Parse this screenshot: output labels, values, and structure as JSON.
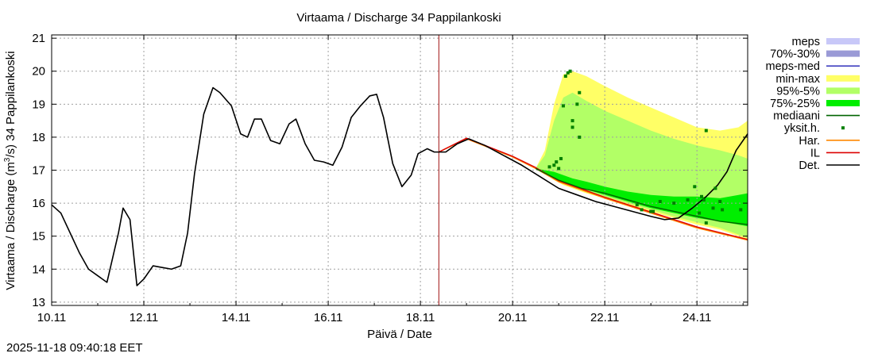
{
  "chart_data": {
    "type": "line",
    "title": "Virtaama / Discharge  34 Pappilankoski",
    "xlabel": "Päivä / Date",
    "ylabel_prefix": "Virtaama / Discharge (m",
    "ylabel_sup": "3",
    "ylabel_suffix": "/s)  34 Pappilankoski",
    "xlim": [
      10.0,
      25.1
    ],
    "ylim": [
      12.9,
      21.1
    ],
    "xticks": [
      {
        "value": 10,
        "label": "10.11"
      },
      {
        "value": 12,
        "label": "12.11"
      },
      {
        "value": 14,
        "label": "14.11"
      },
      {
        "value": 16,
        "label": "16.11"
      },
      {
        "value": 18,
        "label": "18.11"
      },
      {
        "value": 20,
        "label": "20.11"
      },
      {
        "value": 22,
        "label": "22.11"
      },
      {
        "value": 24,
        "label": "24.11"
      }
    ],
    "yticks": [
      13,
      14,
      15,
      16,
      17,
      18,
      19,
      20,
      21
    ],
    "now_x": 18.4,
    "grid": true,
    "legend_position": "right",
    "legend": [
      {
        "label": "meps",
        "kind": "box",
        "color": "#c8c8f8"
      },
      {
        "label": "70%-30%",
        "kind": "box",
        "color": "#9a9ad6"
      },
      {
        "label": "meps-med",
        "kind": "line",
        "color": "#4040c0"
      },
      {
        "label": "min-max",
        "kind": "box",
        "color": "#ffff66"
      },
      {
        "label": "95%-5%",
        "kind": "box",
        "color": "#b2ff66"
      },
      {
        "label": "75%-25%",
        "kind": "box",
        "color": "#00ee00"
      },
      {
        "label": "mediaani",
        "kind": "line",
        "color": "#006400"
      },
      {
        "label": "yksit.h.",
        "kind": "dot",
        "color": "#008000"
      },
      {
        "label": "Har.",
        "kind": "line",
        "color": "#ff8800"
      },
      {
        "label": "IL",
        "kind": "line",
        "color": "#dd0000"
      },
      {
        "label": "Det.",
        "kind": "line",
        "color": "#000000"
      }
    ],
    "bands": [
      {
        "name": "min-max",
        "color": "#ffff66",
        "x": [
          20.5,
          20.7,
          20.9,
          21.1,
          21.3,
          21.6,
          22.0,
          22.5,
          23.0,
          23.5,
          24.0,
          24.5,
          24.9,
          25.1
        ],
        "upper": [
          17.05,
          17.6,
          19.0,
          19.9,
          20.0,
          19.85,
          19.55,
          19.2,
          18.9,
          18.6,
          18.3,
          18.2,
          18.3,
          18.5
        ],
        "lower": [
          17.05,
          16.9,
          16.7,
          16.55,
          16.45,
          16.3,
          16.15,
          15.95,
          15.75,
          15.55,
          15.35,
          15.2,
          15.0,
          14.9
        ]
      },
      {
        "name": "95%-5%",
        "color": "#b2ff66",
        "x": [
          20.5,
          20.7,
          20.9,
          21.1,
          21.3,
          21.6,
          22.0,
          22.5,
          23.0,
          23.5,
          24.0,
          24.5,
          24.9,
          25.1
        ],
        "upper": [
          17.05,
          17.45,
          18.5,
          19.2,
          19.35,
          19.1,
          18.8,
          18.5,
          18.2,
          17.95,
          17.75,
          17.6,
          17.45,
          17.35
        ],
        "lower": [
          17.05,
          16.9,
          16.72,
          16.6,
          16.5,
          16.35,
          16.2,
          16.0,
          15.8,
          15.6,
          15.42,
          15.25,
          15.05,
          14.95
        ]
      },
      {
        "name": "75%-25%",
        "color": "#00ee00",
        "x": [
          20.5,
          20.7,
          20.9,
          21.1,
          21.3,
          21.6,
          22.0,
          22.5,
          23.0,
          23.5,
          24.0,
          24.5,
          24.9,
          25.1
        ],
        "upper": [
          17.05,
          17.0,
          16.95,
          16.85,
          16.75,
          16.65,
          16.5,
          16.35,
          16.25,
          16.2,
          16.2,
          16.15,
          16.25,
          16.3
        ],
        "lower": [
          17.05,
          16.92,
          16.78,
          16.65,
          16.55,
          16.42,
          16.25,
          16.05,
          15.85,
          15.7,
          15.55,
          15.45,
          15.35,
          15.3
        ]
      }
    ],
    "series": [
      {
        "name": "Det.",
        "color": "#000000",
        "x": [
          10.0,
          10.2,
          10.4,
          10.6,
          10.8,
          11.0,
          11.2,
          11.35,
          11.45,
          11.55,
          11.7,
          11.85,
          12.0,
          12.2,
          12.4,
          12.6,
          12.8,
          12.95,
          13.1,
          13.3,
          13.5,
          13.65,
          13.9,
          14.1,
          14.25,
          14.4,
          14.55,
          14.75,
          14.95,
          15.15,
          15.3,
          15.5,
          15.7,
          15.9,
          16.1,
          16.3,
          16.5,
          16.7,
          16.9,
          17.05,
          17.2,
          17.4,
          17.6,
          17.8,
          17.95,
          18.15,
          18.3,
          18.55,
          18.8,
          19.05,
          19.4,
          19.8,
          20.2,
          20.6,
          21.0,
          21.4,
          21.8,
          22.2,
          22.6,
          23.0,
          23.3,
          23.6,
          23.9,
          24.2,
          24.45,
          24.65,
          24.85,
          25.1
        ],
        "y": [
          15.95,
          15.7,
          15.1,
          14.5,
          14.0,
          13.8,
          13.6,
          14.5,
          15.1,
          15.85,
          15.5,
          13.5,
          13.7,
          14.1,
          14.05,
          14.0,
          14.1,
          15.1,
          16.9,
          18.7,
          19.5,
          19.35,
          18.95,
          18.1,
          18.0,
          18.55,
          18.55,
          17.9,
          17.8,
          18.4,
          18.55,
          17.8,
          17.3,
          17.25,
          17.15,
          17.7,
          18.6,
          18.95,
          19.25,
          19.3,
          18.6,
          17.2,
          16.5,
          16.85,
          17.5,
          17.65,
          17.55,
          17.55,
          17.8,
          17.95,
          17.75,
          17.45,
          17.15,
          16.8,
          16.45,
          16.25,
          16.05,
          15.9,
          15.75,
          15.6,
          15.5,
          15.55,
          15.85,
          16.2,
          16.55,
          16.95,
          17.6,
          18.1
        ]
      },
      {
        "name": "mediaani",
        "color": "#006400",
        "x": [
          20.5,
          21.0,
          21.5,
          22.0,
          22.5,
          23.0,
          23.5,
          24.0,
          24.5,
          25.1
        ],
        "y": [
          17.05,
          16.7,
          16.45,
          16.3,
          16.1,
          15.9,
          15.75,
          15.6,
          15.45,
          15.35
        ]
      },
      {
        "name": "Har.",
        "color": "#ff8800",
        "x": [
          18.4,
          19.0,
          20.0,
          20.5,
          21.0,
          22.0,
          23.0,
          24.0,
          25.1
        ],
        "y": [
          17.55,
          17.95,
          17.4,
          17.05,
          16.65,
          16.15,
          15.7,
          15.25,
          14.88
        ]
      },
      {
        "name": "IL",
        "color": "#dd0000",
        "x": [
          18.4,
          19.0,
          20.0,
          20.5,
          21.0,
          22.0,
          23.0,
          24.0,
          25.1
        ],
        "y": [
          17.55,
          17.97,
          17.42,
          17.08,
          16.68,
          16.18,
          15.73,
          15.28,
          14.9
        ]
      }
    ],
    "scatter": {
      "name": "yksit.h.",
      "color": "#008000",
      "points": [
        [
          20.8,
          17.1
        ],
        [
          20.9,
          17.15
        ],
        [
          20.95,
          17.25
        ],
        [
          21.0,
          17.05
        ],
        [
          21.05,
          17.35
        ],
        [
          21.1,
          18.95
        ],
        [
          21.15,
          19.85
        ],
        [
          21.2,
          19.95
        ],
        [
          21.25,
          20.0
        ],
        [
          21.3,
          18.5
        ],
        [
          21.3,
          18.3
        ],
        [
          21.4,
          19.0
        ],
        [
          21.45,
          19.35
        ],
        [
          21.45,
          18.0
        ],
        [
          22.7,
          15.95
        ],
        [
          22.8,
          15.8
        ],
        [
          23.0,
          15.75
        ],
        [
          23.05,
          15.75
        ],
        [
          23.2,
          16.05
        ],
        [
          23.5,
          16.0
        ],
        [
          23.8,
          16.1
        ],
        [
          23.95,
          16.5
        ],
        [
          24.05,
          15.7
        ],
        [
          24.1,
          16.2
        ],
        [
          24.15,
          16.1
        ],
        [
          24.2,
          15.4
        ],
        [
          24.2,
          18.2
        ],
        [
          24.35,
          15.85
        ],
        [
          24.4,
          16.45
        ],
        [
          24.5,
          16.05
        ],
        [
          24.55,
          15.8
        ],
        [
          24.95,
          15.8
        ]
      ]
    }
  },
  "timestamp": "2025-11-18 09:40:18 EET"
}
